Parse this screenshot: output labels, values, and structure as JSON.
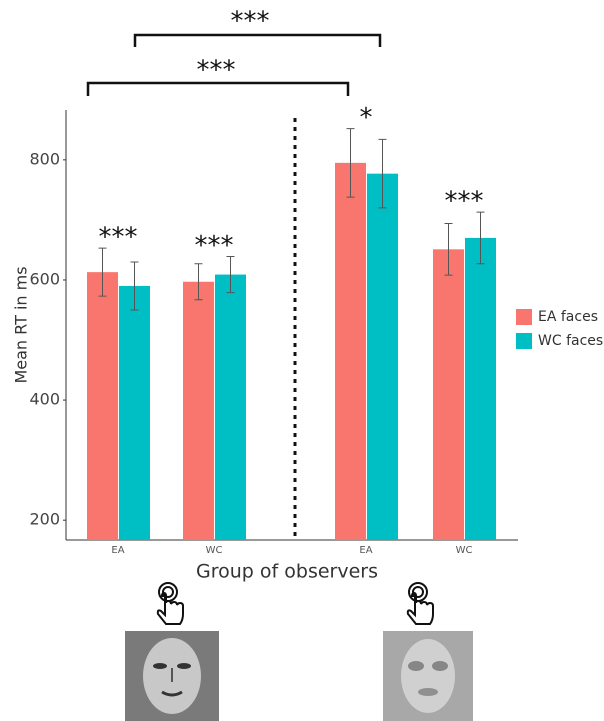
{
  "chart_data": {
    "type": "bar",
    "x_label": "Group of observers",
    "y_label": "Mean RT in ms",
    "categories": [
      "EA",
      "WC",
      "EA",
      "WC"
    ],
    "series": [
      {
        "name": "EA faces",
        "color": "#f8766d",
        "values": [
          613,
          597,
          795,
          651
        ],
        "errors": [
          40,
          30,
          57,
          43
        ]
      },
      {
        "name": "WC faces",
        "color": "#00bfc4",
        "values": [
          590,
          609,
          777,
          670
        ],
        "errors": [
          40,
          30,
          57,
          43
        ]
      }
    ],
    "ylim": [
      167,
      883
    ],
    "yticks": [
      200,
      400,
      600,
      800
    ],
    "group_annotations": [
      "***",
      "***",
      "*",
      "***"
    ],
    "brackets": [
      {
        "label": "***"
      },
      {
        "label": "***"
      }
    ],
    "legend": "right"
  }
}
